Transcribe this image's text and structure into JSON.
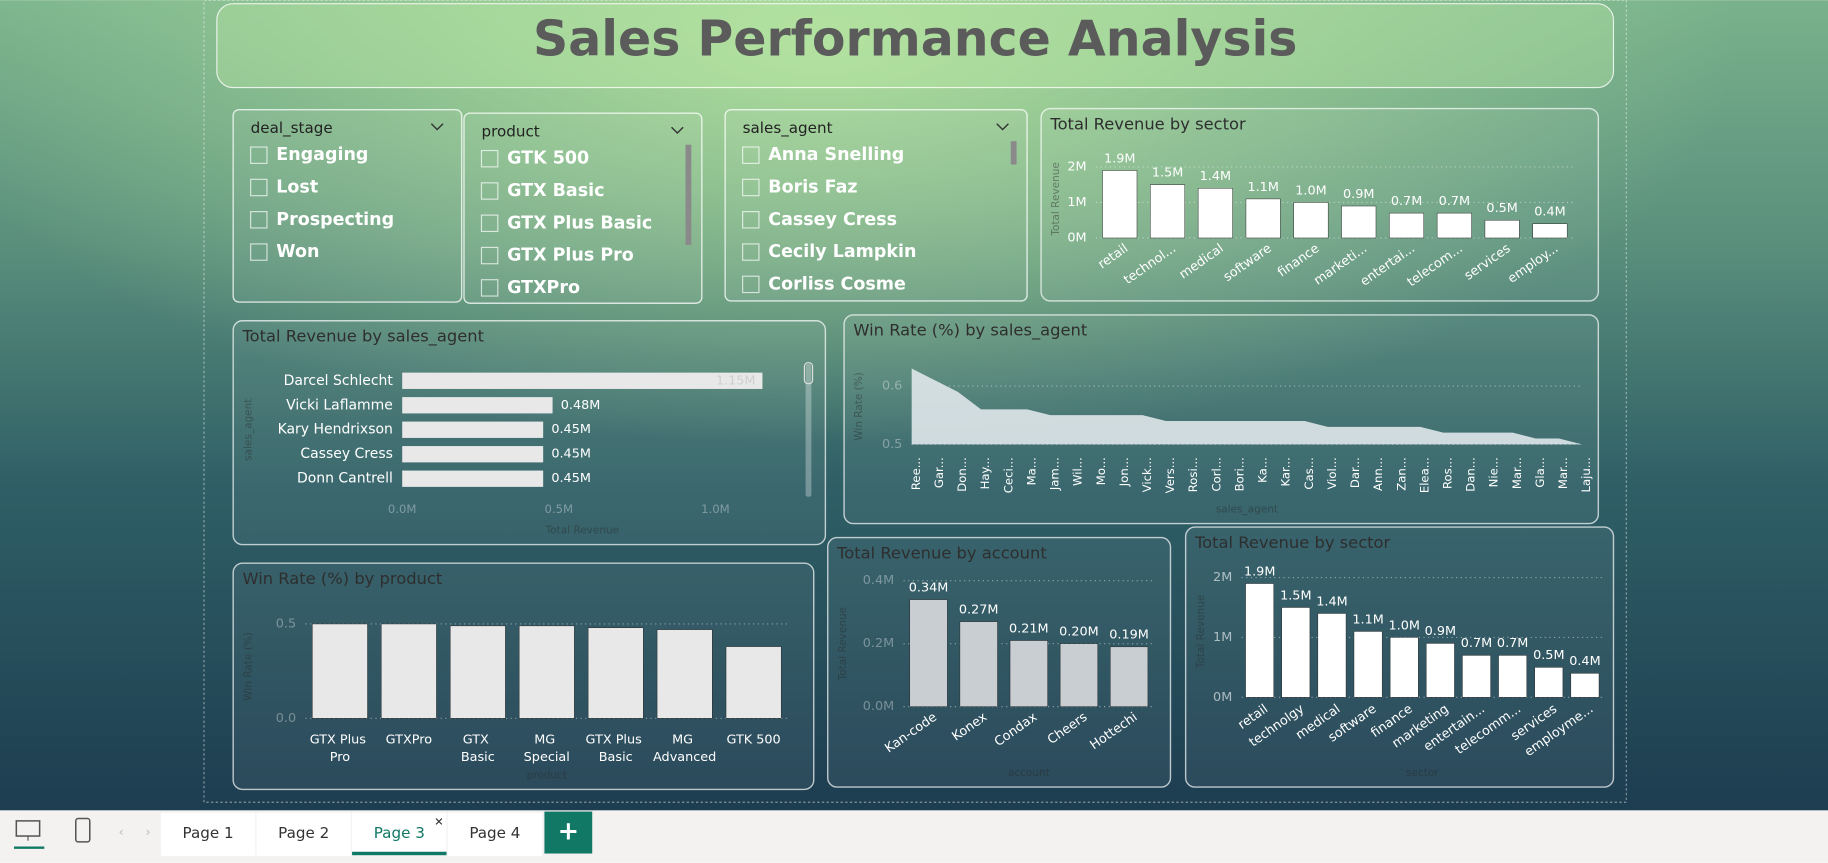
{
  "title": "Sales Performance Analysis",
  "slicers": [
    {
      "field": "deal_stage",
      "items": [
        "Engaging",
        "Lost",
        "Prospecting",
        "Won"
      ]
    },
    {
      "field": "product",
      "items": [
        "GTK 500",
        "GTX Basic",
        "GTX Plus Basic",
        "GTX Plus Pro",
        "GTXPro"
      ]
    },
    {
      "field": "sales_agent",
      "items": [
        "Anna Snelling",
        "Boris Faz",
        "Cassey Cress",
        "Cecily Lampkin",
        "Corliss Cosme"
      ]
    }
  ],
  "chart_data": [
    {
      "type": "bar",
      "title": "Total Revenue by sector",
      "y_label": "Total Revenue",
      "color": "#ffffff",
      "categories": [
        "retail",
        "technol...",
        "medical",
        "software",
        "finance",
        "marketi...",
        "entertai...",
        "telecom...",
        "services",
        "employ..."
      ],
      "values": [
        1900000,
        1500000,
        1400000,
        1100000,
        1000000,
        900000,
        700000,
        700000,
        500000,
        400000
      ],
      "value_labels": [
        "1.9M",
        "1.5M",
        "1.4M",
        "1.1M",
        "1.0M",
        "0.9M",
        "0.7M",
        "0.7M",
        "0.5M",
        "0.4M"
      ],
      "ylim": [
        0,
        2200000
      ],
      "yticks": [
        {
          "value": 0,
          "label": "0M"
        },
        {
          "value": 1000000,
          "label": "1M"
        },
        {
          "value": 2000000,
          "label": "2M"
        }
      ],
      "grid": true
    },
    {
      "type": "bar",
      "orientation": "horizontal",
      "title": "Total Revenue by sales_agent",
      "x_label": "Total Revenue",
      "y_label": "sales_agent",
      "color": "#e8e8e8",
      "categories": [
        "Darcel Schlecht",
        "Vicki Laflamme",
        "Kary Hendrixson",
        "Cassey Cress",
        "Donn Cantrell"
      ],
      "values": [
        1150000,
        480000,
        450000,
        450000,
        450000
      ],
      "value_labels": [
        "1.15M",
        "0.48M",
        "0.45M",
        "0.45M",
        "0.45M"
      ],
      "xlim": [
        0,
        1150000
      ],
      "xticks": [
        {
          "value": 0,
          "label": "0.0M"
        },
        {
          "value": 500000,
          "label": "0.5M"
        },
        {
          "value": 1000000,
          "label": "1.0M"
        }
      ]
    },
    {
      "type": "area",
      "title": "Win Rate (%) by sales_agent",
      "x_label": "sales_agent",
      "y_label": "Win Rate (%)",
      "color": "#dfe7ea",
      "categories": [
        "Ree...",
        "Gar...",
        "Don...",
        "Hay...",
        "Ceci...",
        "Ma...",
        "Jam...",
        "Wil...",
        "Mo...",
        "Jon...",
        "Vick...",
        "Vers...",
        "Rosi...",
        "Corl...",
        "Bori...",
        "Ka...",
        "Kar...",
        "Cas...",
        "Viol...",
        "Dar...",
        "Ann...",
        "Zan...",
        "Elea...",
        "Ros...",
        "Dan...",
        "Nie...",
        "Mar...",
        "Gla...",
        "Mar...",
        "Laju..."
      ],
      "values": [
        0.63,
        0.61,
        0.59,
        0.56,
        0.56,
        0.56,
        0.55,
        0.55,
        0.55,
        0.55,
        0.55,
        0.54,
        0.54,
        0.54,
        0.54,
        0.54,
        0.54,
        0.54,
        0.53,
        0.53,
        0.53,
        0.53,
        0.53,
        0.52,
        0.52,
        0.52,
        0.52,
        0.51,
        0.51,
        0.5
      ],
      "ylim": [
        0.5,
        0.63
      ],
      "yticks": [
        0.5,
        0.6
      ],
      "grid": true
    },
    {
      "type": "bar",
      "title": "Win Rate (%) by product",
      "x_label": "product",
      "y_label": "Win Rate (%)",
      "color": "#e8e8e8",
      "categories": [
        "GTX Plus Pro",
        "GTXPro",
        "GTX Basic",
        "MG Special",
        "GTX Plus Basic",
        "MG Advanced",
        "GTK 500"
      ],
      "values": [
        0.5,
        0.5,
        0.49,
        0.49,
        0.48,
        0.47,
        0.38
      ],
      "ylim": [
        0,
        0.55
      ],
      "yticks": [
        {
          "value": 0,
          "label": "0.0"
        },
        0.5
      ],
      "grid": true
    },
    {
      "type": "bar",
      "title": "Total Revenue by account",
      "x_label": "account",
      "y_label": "Total Revenue",
      "color": "#c9ced3",
      "categories": [
        "Kan-code",
        "Konex",
        "Condax",
        "Cheers",
        "Hottechi"
      ],
      "values": [
        340000,
        270000,
        210000,
        200000,
        190000
      ],
      "value_labels": [
        "0.34M",
        "0.27M",
        "0.21M",
        "0.20M",
        "0.19M"
      ],
      "ylim": [
        0,
        400000
      ],
      "yticks": [
        {
          "value": 0,
          "label": "0.0M"
        },
        {
          "value": 200000,
          "label": "0.2M"
        },
        {
          "value": 400000,
          "label": "0.4M"
        }
      ],
      "grid": true
    },
    {
      "type": "bar",
      "title": "Total Revenue by sector",
      "x_label": "sector",
      "y_label": "Total Revenue",
      "color": "#ffffff",
      "categories": [
        "retail",
        "technolgy",
        "medical",
        "software",
        "finance",
        "marketing",
        "entertain...",
        "telecomm...",
        "services",
        "employme..."
      ],
      "values": [
        1900000,
        1500000,
        1400000,
        1100000,
        1000000,
        900000,
        700000,
        700000,
        500000,
        400000
      ],
      "value_labels": [
        "1.9M",
        "1.5M",
        "1.4M",
        "1.1M",
        "1.0M",
        "0.9M",
        "0.7M",
        "0.7M",
        "0.5M",
        "0.4M"
      ],
      "ylim": [
        0,
        2200000
      ],
      "yticks": [
        {
          "value": 0,
          "label": "0M"
        },
        {
          "value": 1000000,
          "label": "1M"
        },
        {
          "value": 2000000,
          "label": "2M"
        }
      ],
      "grid": true
    }
  ],
  "tabs": [
    "Page 1",
    "Page 2",
    "Page 3",
    "Page 4"
  ]
}
